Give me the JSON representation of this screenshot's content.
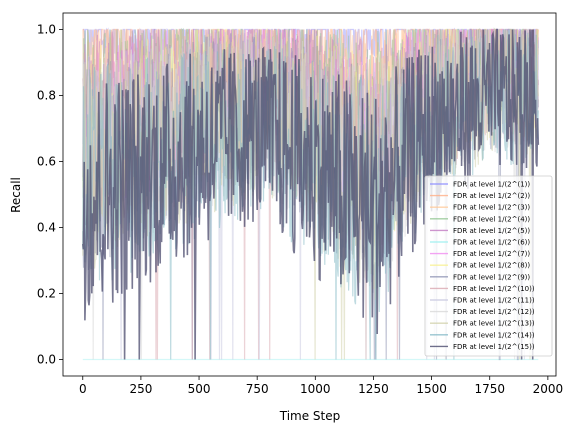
{
  "chart_data": {
    "type": "line",
    "xlabel": "Time Step",
    "ylabel": "Recall",
    "xlim": [
      -85,
      2035
    ],
    "ylim": [
      -0.05,
      1.05
    ],
    "x_ticks": [
      0,
      250,
      500,
      750,
      1000,
      1250,
      1500,
      1750,
      2000
    ],
    "x_tick_labels": [
      "0",
      "250",
      "500",
      "750",
      "1000",
      "1250",
      "1500",
      "1750",
      "2000"
    ],
    "y_ticks": [
      0.0,
      0.2,
      0.4,
      0.6,
      0.8,
      1.0
    ],
    "y_tick_labels": [
      "0.0",
      "0.2",
      "0.4",
      "0.6",
      "0.8",
      "1.0"
    ],
    "legend_position": "lower-right",
    "grid": false,
    "series": [
      {
        "name": "FDR at level 1/(2^(1))",
        "color": "#8f8fff",
        "base_levels": [
          [
            0,
            0.97
          ],
          [
            500,
            0.98
          ],
          [
            1000,
            0.99
          ],
          [
            1500,
            0.99
          ],
          [
            1950,
            0.99
          ]
        ]
      },
      {
        "name": "FDR at level 1/(2^(2))",
        "color": "#ffae86",
        "base_levels": [
          [
            0,
            0.88
          ],
          [
            250,
            0.9
          ],
          [
            500,
            0.93
          ],
          [
            750,
            0.94
          ],
          [
            1000,
            0.9
          ],
          [
            1250,
            0.85
          ],
          [
            1500,
            0.93
          ],
          [
            1750,
            0.95
          ],
          [
            1950,
            0.95
          ]
        ]
      },
      {
        "name": "FDR at level 1/(2^(3))",
        "color": "#ffc896",
        "base_levels": [
          [
            0,
            0.82
          ],
          [
            250,
            0.86
          ],
          [
            500,
            0.9
          ],
          [
            750,
            0.92
          ],
          [
            1000,
            0.86
          ],
          [
            1250,
            0.8
          ],
          [
            1500,
            0.9
          ],
          [
            1750,
            0.93
          ],
          [
            1950,
            0.93
          ]
        ]
      },
      {
        "name": "FDR at level 1/(2^(4))",
        "color": "#8fc48f",
        "base_levels": [
          [
            0,
            0.75
          ],
          [
            250,
            0.8
          ],
          [
            500,
            0.85
          ],
          [
            750,
            0.88
          ],
          [
            1000,
            0.8
          ],
          [
            1250,
            0.72
          ],
          [
            1500,
            0.86
          ],
          [
            1750,
            0.9
          ],
          [
            1950,
            0.9
          ]
        ]
      },
      {
        "name": "FDR at level 1/(2^(5))",
        "color": "#c27ac2",
        "base_levels": [
          [
            0,
            0.7
          ],
          [
            250,
            0.76
          ],
          [
            500,
            0.82
          ],
          [
            750,
            0.85
          ],
          [
            1000,
            0.76
          ],
          [
            1250,
            0.66
          ],
          [
            1500,
            0.83
          ],
          [
            1750,
            0.88
          ],
          [
            1950,
            0.88
          ]
        ]
      },
      {
        "name": "FDR at level 1/(2^(6))",
        "color": "#9ff0f0",
        "base_levels": [
          [
            0,
            0.0
          ],
          [
            1950,
            0.0
          ]
        ]
      },
      {
        "name": "FDR at level 1/(2^(7))",
        "color": "#f08cf0",
        "base_levels": [
          [
            0,
            0.66
          ],
          [
            250,
            0.72
          ],
          [
            500,
            0.78
          ],
          [
            750,
            0.82
          ],
          [
            1000,
            0.72
          ],
          [
            1250,
            0.6
          ],
          [
            1500,
            0.8
          ],
          [
            1750,
            0.86
          ],
          [
            1950,
            0.86
          ]
        ]
      },
      {
        "name": "FDR at level 1/(2^(8))",
        "color": "#f7f08c",
        "base_levels": [
          [
            0,
            0.62
          ],
          [
            250,
            0.68
          ],
          [
            500,
            0.75
          ],
          [
            750,
            0.8
          ],
          [
            1000,
            0.7
          ],
          [
            1250,
            0.56
          ],
          [
            1500,
            0.78
          ],
          [
            1750,
            0.84
          ],
          [
            1950,
            0.84
          ]
        ]
      },
      {
        "name": "FDR at level 1/(2^(9))",
        "color": "#8a8fb0",
        "base_levels": [
          [
            0,
            0.55
          ],
          [
            250,
            0.62
          ],
          [
            500,
            0.7
          ],
          [
            750,
            0.75
          ],
          [
            1000,
            0.64
          ],
          [
            1250,
            0.5
          ],
          [
            1500,
            0.74
          ],
          [
            1750,
            0.82
          ],
          [
            1950,
            0.82
          ]
        ]
      },
      {
        "name": "FDR at level 1/(2^(10))",
        "color": "#d9a8b0",
        "base_levels": [
          [
            0,
            0.6
          ],
          [
            250,
            0.66
          ],
          [
            500,
            0.72
          ],
          [
            750,
            0.78
          ],
          [
            1000,
            0.68
          ],
          [
            1250,
            0.54
          ],
          [
            1500,
            0.76
          ],
          [
            1750,
            0.83
          ],
          [
            1950,
            0.83
          ]
        ]
      },
      {
        "name": "FDR at level 1/(2^(11))",
        "color": "#c8c8e0",
        "base_levels": [
          [
            0,
            0.58
          ],
          [
            250,
            0.64
          ],
          [
            500,
            0.7
          ],
          [
            750,
            0.76
          ],
          [
            1000,
            0.66
          ],
          [
            1250,
            0.52
          ],
          [
            1500,
            0.75
          ],
          [
            1750,
            0.82
          ],
          [
            1950,
            0.82
          ]
        ]
      },
      {
        "name": "FDR at level 1/(2^(12))",
        "color": "#d8d8d8",
        "base_levels": [
          [
            0,
            0.56
          ],
          [
            250,
            0.62
          ],
          [
            500,
            0.68
          ],
          [
            750,
            0.74
          ],
          [
            1000,
            0.64
          ],
          [
            1250,
            0.5
          ],
          [
            1500,
            0.74
          ],
          [
            1750,
            0.81
          ],
          [
            1950,
            0.81
          ]
        ]
      },
      {
        "name": "FDR at level 1/(2^(13))",
        "color": "#d0cfa8",
        "base_levels": [
          [
            0,
            0.54
          ],
          [
            250,
            0.6
          ],
          [
            500,
            0.66
          ],
          [
            750,
            0.72
          ],
          [
            1000,
            0.62
          ],
          [
            1250,
            0.48
          ],
          [
            1500,
            0.72
          ],
          [
            1750,
            0.8
          ],
          [
            1950,
            0.8
          ]
        ]
      },
      {
        "name": "FDR at level 1/(2^(14))",
        "color": "#7fb7c4",
        "base_levels": [
          [
            0,
            0.5
          ],
          [
            250,
            0.56
          ],
          [
            500,
            0.62
          ],
          [
            750,
            0.68
          ],
          [
            1000,
            0.58
          ],
          [
            1250,
            0.44
          ],
          [
            1500,
            0.7
          ],
          [
            1750,
            0.78
          ],
          [
            1950,
            0.78
          ]
        ]
      },
      {
        "name": "FDR at level 1/(2^(15))",
        "color": "#4b4b6e",
        "base_levels": [
          [
            0,
            0.45
          ],
          [
            250,
            0.52
          ],
          [
            500,
            0.6
          ],
          [
            750,
            0.66
          ],
          [
            1000,
            0.55
          ],
          [
            1250,
            0.4
          ],
          [
            1500,
            0.68
          ],
          [
            1750,
            0.77
          ],
          [
            1950,
            0.77
          ]
        ]
      }
    ]
  }
}
